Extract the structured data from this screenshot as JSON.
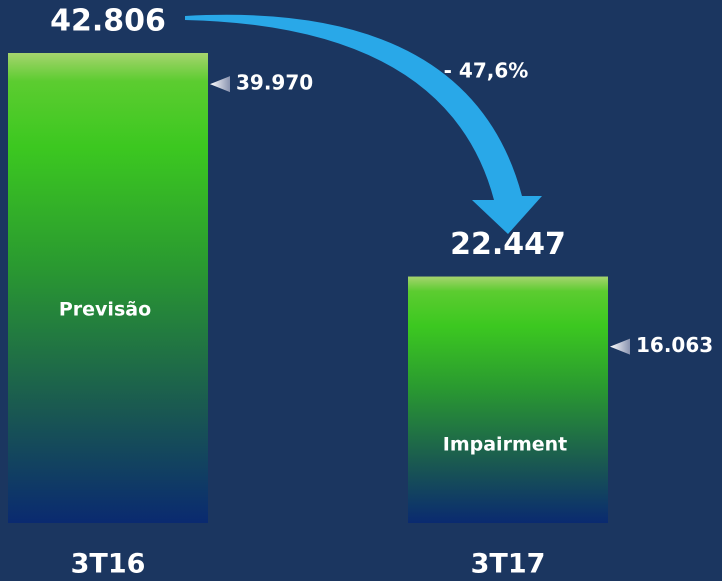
{
  "chart_data": {
    "type": "bar",
    "categories": [
      "3T16",
      "3T17"
    ],
    "values": [
      42806,
      22447
    ],
    "value_labels": [
      "42.806",
      "22.447"
    ],
    "bar_labels": [
      "Previsão",
      "Impairment"
    ],
    "markers": {
      "values": [
        39970,
        16063
      ],
      "value_labels": [
        "39.970",
        "16.063"
      ]
    },
    "annotation": "- 47,6%"
  }
}
